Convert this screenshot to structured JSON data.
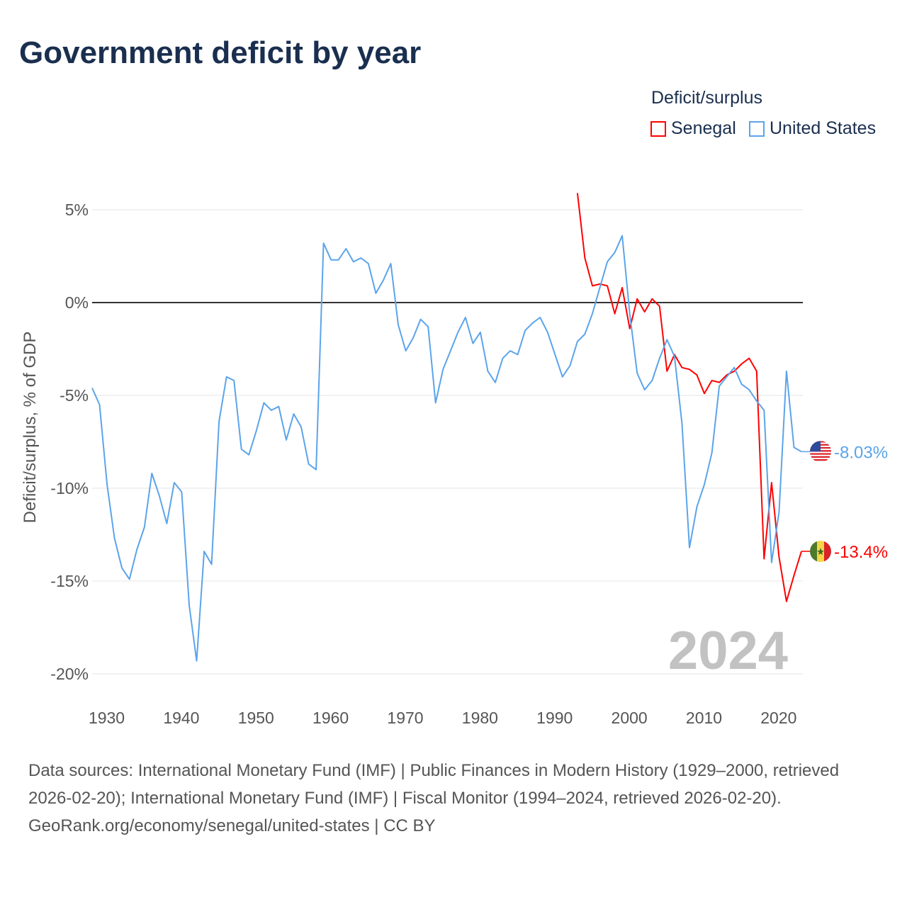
{
  "chart_data": {
    "type": "line",
    "title": "Government deficit by year",
    "ylabel": "Deficit/surplus, % of GDP",
    "xlabel": "",
    "xlim": [
      1929,
      2024
    ],
    "ylim": [
      -20,
      5
    ],
    "x_ticks": [
      1930,
      1940,
      1950,
      1960,
      1970,
      1980,
      1990,
      2000,
      2010,
      2020
    ],
    "y_ticks": [
      5,
      0,
      -5,
      -10,
      -15,
      -20
    ],
    "y_tick_labels": [
      "5%",
      "0%",
      "-5%",
      "-10%",
      "-15%",
      "-20%"
    ],
    "legend_title": "Deficit/surplus",
    "legend_placement": "top-right",
    "year_watermark": "2024",
    "series": [
      {
        "name": "Senegal",
        "color": "#ff0000",
        "end_label": "-13.4%",
        "flag": "senegal-flag",
        "start_year": 1994,
        "values": [
          5.9,
          2.4,
          0.9,
          1.0,
          0.9,
          -0.6,
          0.8,
          -1.4,
          0.2,
          -0.5,
          0.2,
          -0.2,
          -3.7,
          -2.8,
          -3.5,
          -3.6,
          -3.9,
          -4.9,
          -4.2,
          -4.3,
          -3.9,
          -3.7,
          -3.3,
          -3.0,
          -3.7,
          -13.8,
          -9.7,
          -13.7,
          -16.1,
          -14.7,
          -13.4
        ]
      },
      {
        "name": "United States",
        "color": "#5ba4ea",
        "end_label": "-8.03%",
        "flag": "us-flag",
        "start_year": 1929,
        "values": [
          -4.6,
          -5.5,
          -9.8,
          -12.7,
          -14.3,
          -14.9,
          -13.3,
          -12.1,
          -9.2,
          -10.4,
          -11.9,
          -9.7,
          -10.2,
          -16.3,
          -19.3,
          -13.4,
          -14.1,
          -6.4,
          -4.0,
          -4.2,
          -7.9,
          -8.2,
          -6.9,
          -5.4,
          -5.8,
          -5.6,
          -7.4,
          -6.0,
          -6.7,
          -8.7,
          -9.0,
          3.2,
          2.3,
          2.3,
          2.9,
          2.2,
          2.4,
          2.1,
          0.5,
          1.2,
          2.1,
          -1.2,
          -2.6,
          -1.9,
          -0.9,
          -1.3,
          -5.4,
          -3.6,
          -2.6,
          -1.6,
          -0.8,
          -2.2,
          -1.6,
          -3.7,
          -4.3,
          -3.0,
          -2.6,
          -2.8,
          -1.5,
          -1.1,
          -0.8,
          -1.6,
          -2.8,
          -4.0,
          -3.4,
          -2.1,
          -1.7,
          -0.6,
          0.8,
          2.2,
          2.7,
          3.6,
          -0.6,
          -3.8,
          -4.7,
          -4.2,
          -3.0,
          -2.0,
          -2.9,
          -6.5,
          -13.2,
          -11.0,
          -9.8,
          -8.1,
          -4.5,
          -4.0,
          -3.5,
          -4.4,
          -4.7,
          -5.3,
          -5.8,
          -14.0,
          -11.3,
          -3.7,
          -7.8,
          -8.03
        ]
      }
    ]
  },
  "sources": {
    "line1": "Data sources: International Monetary Fund (IMF) | Public Finances in Modern History (1929–2000, retrieved 2026-02-20); International Monetary Fund (IMF) | Fiscal Monitor (1994–2024, retrieved 2026-02-20).",
    "line2": "GeoRank.org/economy/senegal/united-states | CC BY"
  }
}
